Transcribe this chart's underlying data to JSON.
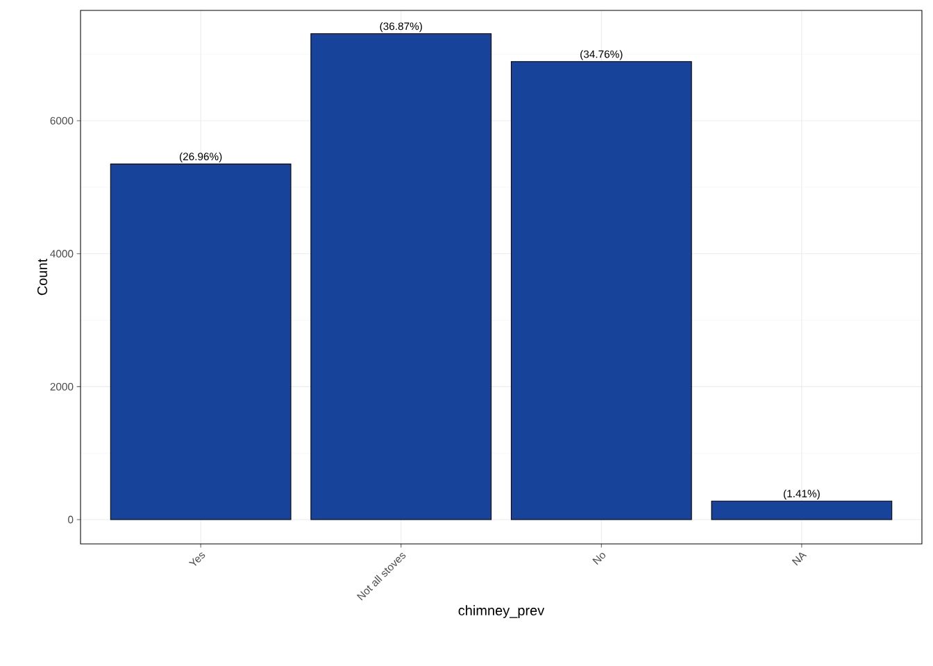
{
  "chart_data": {
    "type": "bar",
    "xlabel": "chimney_prev",
    "ylabel": "Count",
    "categories": [
      "Yes",
      "Not all stoves",
      "No",
      "NA"
    ],
    "values": [
      5350,
      7310,
      6890,
      280
    ],
    "color": "#18439a",
    "ylim": [
      -365,
      7660
    ],
    "yticks": [
      0,
      2000,
      4000,
      6000
    ],
    "grid": true,
    "annotations": [
      {
        "text": "(26.96%)",
        "x": "Yes",
        "y": 5350
      },
      {
        "text": "(36.87%)",
        "x": "Not all stoves",
        "y": 7310
      },
      {
        "text": "(34.76%)",
        "x": "No",
        "y": 6890
      },
      {
        "text": "(1.41%)",
        "x": "NA",
        "y": 280
      }
    ]
  }
}
